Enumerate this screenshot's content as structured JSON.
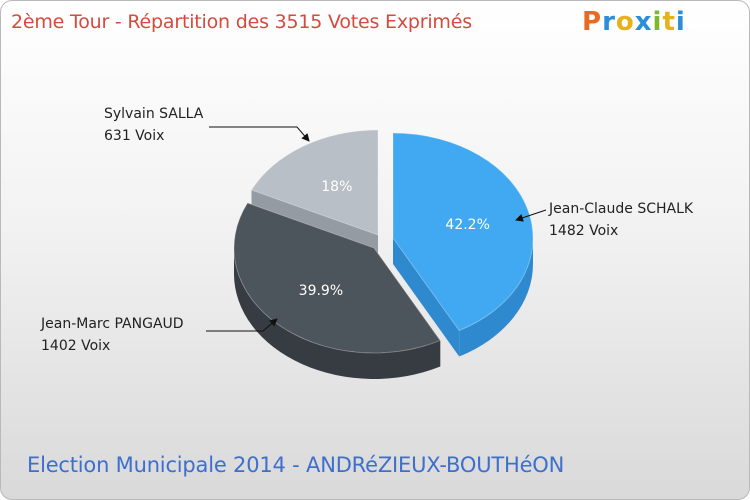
{
  "header": {
    "title": "2ème Tour - Répartition des 3515 Votes Exprimés",
    "logo_text": "Proxiti",
    "logo_colors": [
      "#ea6b1f",
      "#2a8fd6",
      "#e6b21c",
      "#2a8fd6",
      "#7cb82f",
      "#e6b21c",
      "#2a8fd6"
    ]
  },
  "footer": {
    "caption": "Election Municipale 2014 - ANDRéZIEUX-BOUTHéON"
  },
  "chart_data": {
    "type": "pie",
    "title": "2ème Tour - Répartition des 3515 Votes Exprimés",
    "total": 3515,
    "slices": [
      {
        "name": "Jean-Claude SCHALK",
        "votes_label": "1482 Voix",
        "votes": 1482,
        "percent_label": "42.2%",
        "percent": 42.2,
        "color": "#41a9f1",
        "side_color": "#2f89cf"
      },
      {
        "name": "Jean-Marc PANGAUD",
        "votes_label": "1402 Voix",
        "votes": 1402,
        "percent_label": "39.9%",
        "percent": 39.9,
        "color": "#4c545c",
        "side_color": "#363c42"
      },
      {
        "name": "Sylvain SALLA",
        "votes_label": "631 Voix",
        "votes": 631,
        "percent_label": "18%",
        "percent": 18.0,
        "color": "#b9bfc6",
        "side_color": "#959ba2"
      }
    ]
  }
}
